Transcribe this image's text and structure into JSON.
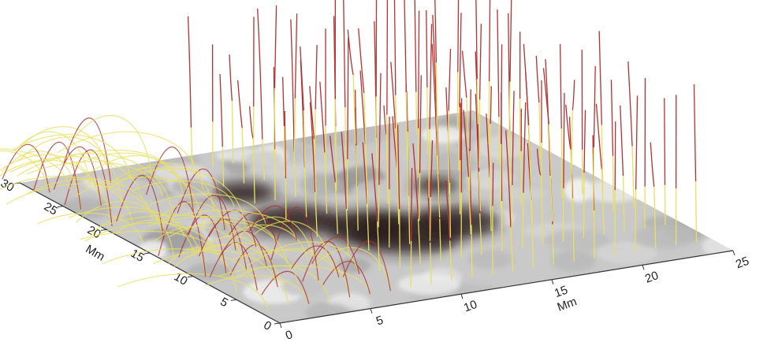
{
  "chart_data": {
    "type": "field-lines-3d",
    "xlabel": "Mm",
    "ylabel": "Mm",
    "xlim": [
      0,
      25
    ],
    "xticks": [
      0,
      5,
      10,
      15,
      20,
      25
    ],
    "ylim": [
      0,
      30
    ],
    "yticks": [
      0,
      5,
      10,
      15,
      20,
      25,
      30
    ]
  }
}
